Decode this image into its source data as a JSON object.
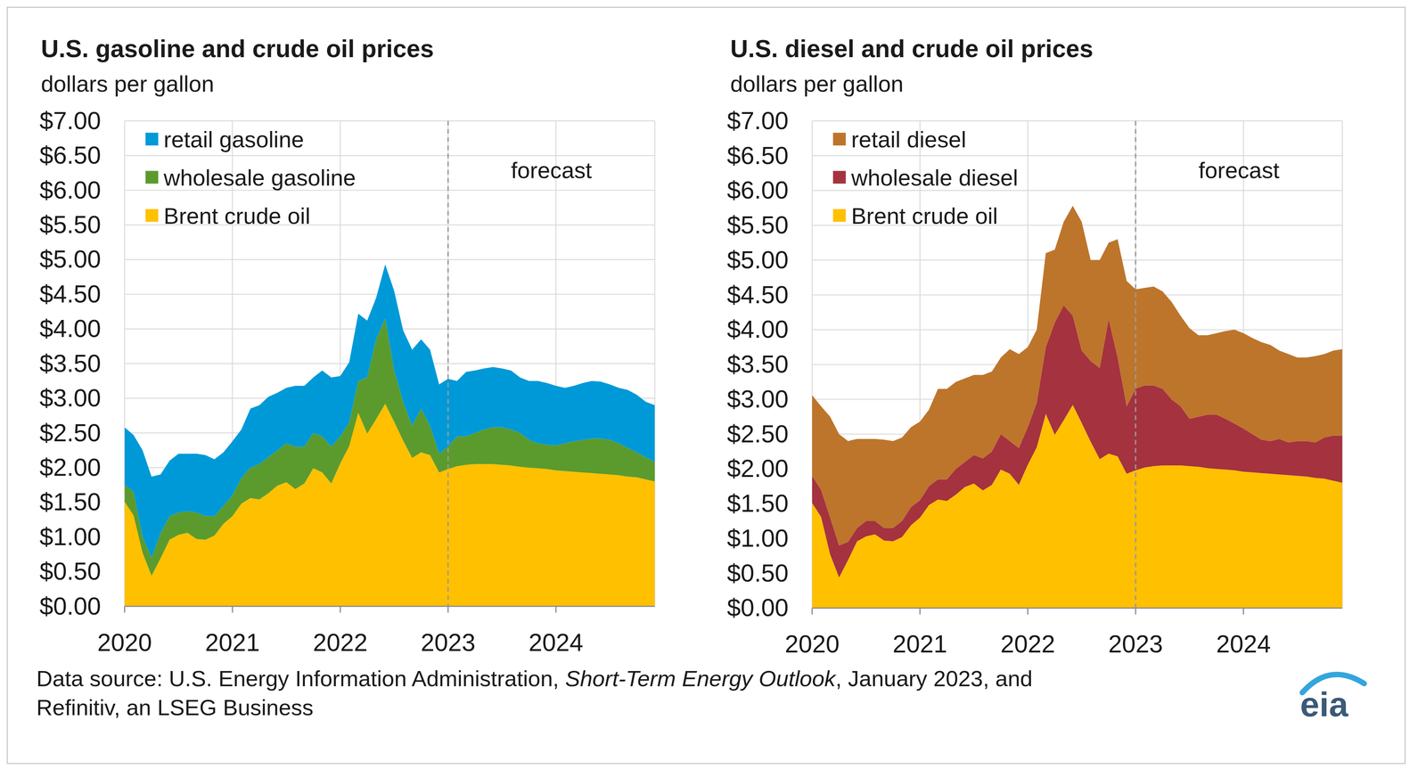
{
  "chart_data": [
    {
      "type": "area",
      "stacked": true,
      "grid": true,
      "legend": "upper left",
      "title": "U.S. gasoline and crude oil prices",
      "subtitle": "dollars per gallon",
      "x": [
        2020,
        2020.083,
        2020.167,
        2020.25,
        2020.333,
        2020.417,
        2020.5,
        2020.583,
        2020.667,
        2020.75,
        2020.833,
        2020.917,
        2021,
        2021.083,
        2021.167,
        2021.25,
        2021.333,
        2021.417,
        2021.5,
        2021.583,
        2021.667,
        2021.75,
        2021.833,
        2021.917,
        2022,
        2022.083,
        2022.167,
        2022.25,
        2022.333,
        2022.417,
        2022.5,
        2022.583,
        2022.667,
        2022.75,
        2022.833,
        2022.917,
        2023,
        2023.083,
        2023.167,
        2023.25,
        2023.333,
        2023.417,
        2023.5,
        2023.583,
        2023.667,
        2023.75,
        2023.833,
        2023.917,
        2024,
        2024.083,
        2024.167,
        2024.25,
        2024.333,
        2024.417,
        2024.5,
        2024.583,
        2024.667,
        2024.75,
        2024.833,
        2024.917
      ],
      "xlim": [
        2020,
        2024.917
      ],
      "xticks": [
        2020,
        2021,
        2022,
        2023,
        2024
      ],
      "ylim": [
        0,
        7
      ],
      "yticks": [
        {
          "value": 0,
          "label": "$0.00"
        },
        {
          "value": 0.5,
          "label": "$0.50"
        },
        {
          "value": 1,
          "label": "$1.00"
        },
        {
          "value": 1.5,
          "label": "$1.50"
        },
        {
          "value": 2,
          "label": "$2.00"
        },
        {
          "value": 2.5,
          "label": "$2.50"
        },
        {
          "value": 3,
          "label": "$3.00"
        },
        {
          "value": 3.5,
          "label": "$3.50"
        },
        {
          "value": 4,
          "label": "$4.00"
        },
        {
          "value": 4.5,
          "label": "$4.50"
        },
        {
          "value": 5,
          "label": "$5.00"
        },
        {
          "value": 5.5,
          "label": "$5.50"
        },
        {
          "value": 6,
          "label": "$6.00"
        },
        {
          "value": 6.5,
          "label": "$6.50"
        },
        {
          "value": 7,
          "label": "$7.00"
        }
      ],
      "annotations": [
        {
          "text": "forecast",
          "x": 2023
        }
      ],
      "series": [
        {
          "name": "Brent crude oil",
          "color": "#ffc000",
          "values": [
            1.51,
            1.31,
            0.77,
            0.44,
            0.69,
            0.96,
            1.03,
            1.06,
            0.97,
            0.96,
            1.02,
            1.19,
            1.3,
            1.48,
            1.56,
            1.54,
            1.63,
            1.74,
            1.79,
            1.69,
            1.77,
            1.99,
            1.93,
            1.77,
            2.06,
            2.31,
            2.79,
            2.49,
            2.7,
            2.92,
            2.66,
            2.39,
            2.14,
            2.22,
            2.18,
            1.93,
            1.98,
            2.02,
            2.04,
            2.05,
            2.05,
            2.05,
            2.04,
            2.03,
            2.01,
            2.0,
            1.99,
            1.98,
            1.96,
            1.95,
            1.94,
            1.93,
            1.92,
            1.91,
            1.9,
            1.89,
            1.87,
            1.86,
            1.83,
            1.8
          ]
        },
        {
          "name": "wholesale gasoline",
          "color": "#5b9b2d",
          "values": [
            0.24,
            0.34,
            0.23,
            0.26,
            0.36,
            0.34,
            0.32,
            0.31,
            0.38,
            0.34,
            0.28,
            0.26,
            0.3,
            0.37,
            0.44,
            0.51,
            0.52,
            0.51,
            0.56,
            0.61,
            0.53,
            0.51,
            0.52,
            0.53,
            0.39,
            0.34,
            0.46,
            0.81,
            1.15,
            1.23,
            0.74,
            0.56,
            0.46,
            0.63,
            0.42,
            0.27,
            0.32,
            0.43,
            0.41,
            0.45,
            0.5,
            0.53,
            0.54,
            0.52,
            0.49,
            0.4,
            0.36,
            0.35,
            0.36,
            0.4,
            0.44,
            0.47,
            0.5,
            0.51,
            0.5,
            0.46,
            0.41,
            0.36,
            0.32,
            0.28
          ]
        },
        {
          "name": "retail gasoline",
          "color": "#0099d8",
          "values": [
            0.83,
            0.82,
            1.25,
            1.17,
            0.85,
            0.8,
            0.85,
            0.83,
            0.85,
            0.88,
            0.82,
            0.77,
            0.78,
            0.7,
            0.85,
            0.85,
            0.87,
            0.83,
            0.8,
            0.88,
            0.88,
            0.8,
            0.95,
            1.0,
            0.87,
            0.87,
            0.97,
            0.82,
            0.6,
            0.78,
            1.15,
            1.03,
            1.1,
            1.0,
            1.1,
            1.0,
            0.98,
            0.8,
            0.93,
            0.9,
            0.88,
            0.87,
            0.85,
            0.85,
            0.8,
            0.85,
            0.9,
            0.89,
            0.86,
            0.8,
            0.8,
            0.82,
            0.83,
            0.82,
            0.8,
            0.8,
            0.84,
            0.83,
            0.8,
            0.82
          ]
        }
      ]
    },
    {
      "type": "area",
      "stacked": true,
      "grid": true,
      "legend": "upper left",
      "title": "U.S. diesel and crude oil prices",
      "subtitle": "dollars per gallon",
      "x": [
        2020,
        2020.083,
        2020.167,
        2020.25,
        2020.333,
        2020.417,
        2020.5,
        2020.583,
        2020.667,
        2020.75,
        2020.833,
        2020.917,
        2021,
        2021.083,
        2021.167,
        2021.25,
        2021.333,
        2021.417,
        2021.5,
        2021.583,
        2021.667,
        2021.75,
        2021.833,
        2021.917,
        2022,
        2022.083,
        2022.167,
        2022.25,
        2022.333,
        2022.417,
        2022.5,
        2022.583,
        2022.667,
        2022.75,
        2022.833,
        2022.917,
        2023,
        2023.083,
        2023.167,
        2023.25,
        2023.333,
        2023.417,
        2023.5,
        2023.583,
        2023.667,
        2023.75,
        2023.833,
        2023.917,
        2024,
        2024.083,
        2024.167,
        2024.25,
        2024.333,
        2024.417,
        2024.5,
        2024.583,
        2024.667,
        2024.75,
        2024.833,
        2024.917
      ],
      "xlim": [
        2020,
        2024.917
      ],
      "xticks": [
        2020,
        2021,
        2022,
        2023,
        2024
      ],
      "ylim": [
        0,
        7
      ],
      "yticks": [
        {
          "value": 0,
          "label": "$0.00"
        },
        {
          "value": 0.5,
          "label": "$0.50"
        },
        {
          "value": 1,
          "label": "$1.00"
        },
        {
          "value": 1.5,
          "label": "$1.50"
        },
        {
          "value": 2,
          "label": "$2.00"
        },
        {
          "value": 2.5,
          "label": "$2.50"
        },
        {
          "value": 3,
          "label": "$3.00"
        },
        {
          "value": 3.5,
          "label": "$3.50"
        },
        {
          "value": 4,
          "label": "$4.00"
        },
        {
          "value": 4.5,
          "label": "$4.50"
        },
        {
          "value": 5,
          "label": "$5.00"
        },
        {
          "value": 5.5,
          "label": "$5.50"
        },
        {
          "value": 6,
          "label": "$6.00"
        },
        {
          "value": 6.5,
          "label": "$6.50"
        },
        {
          "value": 7,
          "label": "$7.00"
        }
      ],
      "annotations": [
        {
          "text": "forecast",
          "x": 2023
        }
      ],
      "series": [
        {
          "name": "Brent crude oil",
          "color": "#ffc000",
          "values": [
            1.51,
            1.31,
            0.77,
            0.44,
            0.69,
            0.96,
            1.03,
            1.06,
            0.97,
            0.96,
            1.02,
            1.19,
            1.3,
            1.48,
            1.56,
            1.54,
            1.63,
            1.74,
            1.79,
            1.69,
            1.77,
            1.99,
            1.93,
            1.77,
            2.06,
            2.31,
            2.79,
            2.49,
            2.7,
            2.92,
            2.66,
            2.39,
            2.14,
            2.22,
            2.18,
            1.93,
            1.98,
            2.02,
            2.04,
            2.05,
            2.05,
            2.05,
            2.04,
            2.03,
            2.01,
            2.0,
            1.99,
            1.98,
            1.96,
            1.95,
            1.94,
            1.93,
            1.92,
            1.91,
            1.9,
            1.89,
            1.87,
            1.86,
            1.83,
            1.8
          ]
        },
        {
          "name": "wholesale diesel",
          "color": "#a5323f",
          "values": [
            0.39,
            0.39,
            0.53,
            0.46,
            0.26,
            0.19,
            0.22,
            0.19,
            0.18,
            0.19,
            0.23,
            0.26,
            0.25,
            0.27,
            0.29,
            0.31,
            0.37,
            0.36,
            0.41,
            0.46,
            0.48,
            0.51,
            0.47,
            0.53,
            0.54,
            0.64,
            0.96,
            1.61,
            1.65,
            1.28,
            1.04,
            1.16,
            1.31,
            1.93,
            1.42,
            0.97,
            1.17,
            1.18,
            1.16,
            1.1,
            0.95,
            0.85,
            0.68,
            0.72,
            0.77,
            0.78,
            0.73,
            0.67,
            0.62,
            0.55,
            0.48,
            0.47,
            0.51,
            0.47,
            0.5,
            0.51,
            0.51,
            0.59,
            0.65,
            0.68
          ]
        },
        {
          "name": "retail diesel",
          "color": "#bd752b",
          "values": [
            1.16,
            1.2,
            1.45,
            1.6,
            1.45,
            1.28,
            1.18,
            1.18,
            1.27,
            1.25,
            1.2,
            1.15,
            1.13,
            1.1,
            1.3,
            1.3,
            1.25,
            1.2,
            1.15,
            1.2,
            1.15,
            1.1,
            1.32,
            1.35,
            1.15,
            1.05,
            1.35,
            1.05,
            1.2,
            1.58,
            1.85,
            1.45,
            1.55,
            1.1,
            1.7,
            1.8,
            1.43,
            1.4,
            1.42,
            1.4,
            1.4,
            1.3,
            1.3,
            1.17,
            1.14,
            1.17,
            1.26,
            1.35,
            1.37,
            1.38,
            1.4,
            1.38,
            1.27,
            1.27,
            1.2,
            1.2,
            1.24,
            1.2,
            1.22,
            1.24
          ]
        }
      ]
    }
  ],
  "source": {
    "prefix": "Data source: U.S. Energy Information Administration, ",
    "italic": "Short-Term Energy Outlook",
    "suffix": ", January 2023, and",
    "line2": "Refinitiv, an LSEG Business"
  },
  "logo": "eia"
}
